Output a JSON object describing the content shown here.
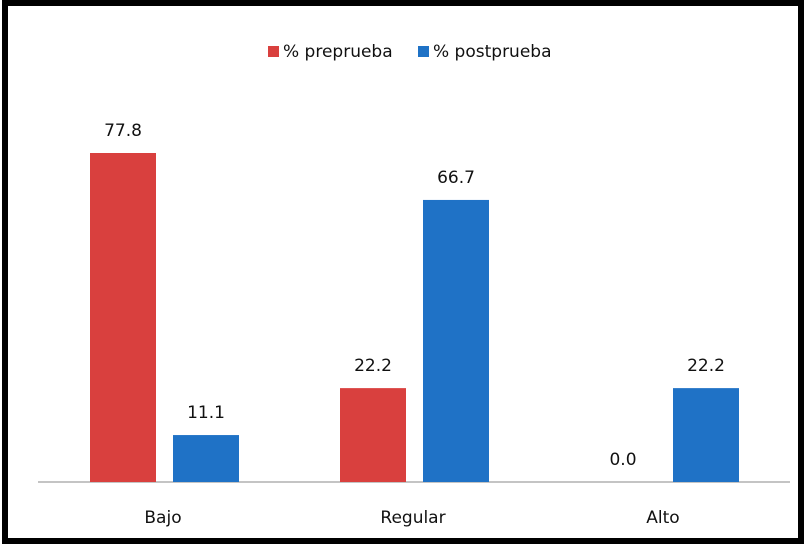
{
  "chart_data": {
    "type": "bar",
    "categories": [
      "Bajo",
      "Regular",
      "Alto"
    ],
    "series": [
      {
        "name": "% preprueba",
        "color": "#d9403e",
        "values": [
          77.8,
          22.2,
          0
        ],
        "value_labels": [
          "77.8",
          "22.2",
          "0.0"
        ]
      },
      {
        "name": "% postprueba",
        "color": "#1f72c6",
        "values": [
          11.1,
          66.7,
          22.2
        ],
        "value_labels": [
          "11.1",
          "66.7",
          "22.2"
        ]
      }
    ],
    "legend": "top"
  }
}
